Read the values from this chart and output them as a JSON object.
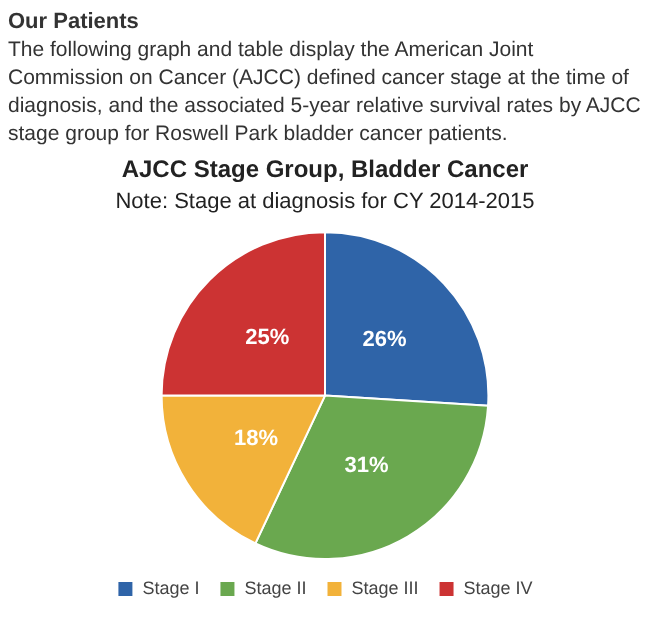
{
  "chart_data": {
    "type": "pie",
    "title": "AJCC Stage Group, Bladder Cancer",
    "subtitle": "Note: Stage at diagnosis for CY 2014-2015",
    "annotations": [
      "Our Patients",
      "The following graph and table display the American Joint Commission on Cancer (AJCC) defined cancer stage at the time of diagnosis, and the associated 5-year relative survival rates by AJCC stage group for Roswell Park bladder cancer patients."
    ],
    "categories": [
      "Stage I",
      "Stage II",
      "Stage III",
      "Stage IV"
    ],
    "values": [
      26,
      31,
      18,
      25
    ],
    "colors": [
      "#2f64a8",
      "#6aa84f",
      "#f2b23a",
      "#cc3333"
    ],
    "value_labels": [
      "26%",
      "31%",
      "18%",
      "25%"
    ],
    "legend": "bottom"
  }
}
